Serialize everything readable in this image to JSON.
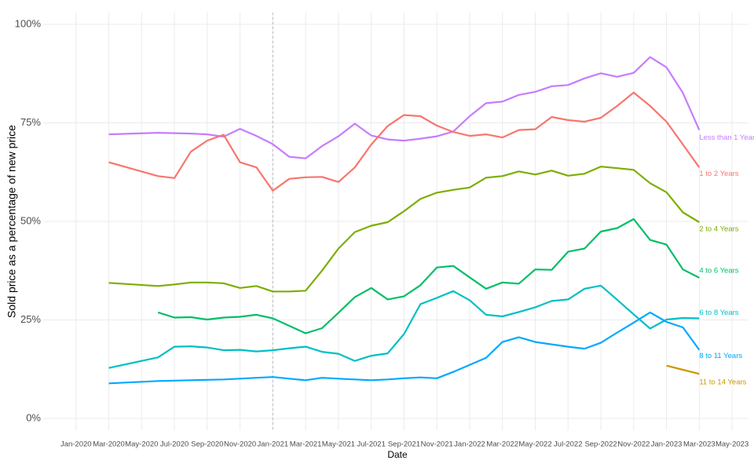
{
  "chart_data": {
    "type": "line",
    "y_label": "Sold price as a percentage of new price",
    "x_label": "Date",
    "x": [
      "2020-03",
      "2020-06",
      "2020-07",
      "2020-08",
      "2020-09",
      "2020-10",
      "2020-11",
      "2020-12",
      "2021-01",
      "2021-02",
      "2021-03",
      "2021-04",
      "2021-05",
      "2021-06",
      "2021-07",
      "2021-08",
      "2021-09",
      "2021-10",
      "2021-11",
      "2021-12",
      "2022-01",
      "2022-02",
      "2022-03",
      "2022-04",
      "2022-05",
      "2022-06",
      "2022-07",
      "2022-08",
      "2022-09",
      "2022-10",
      "2022-11",
      "2022-12",
      "2023-01",
      "2023-02",
      "2023-03"
    ],
    "series": [
      {
        "name": "Less than 1 Year",
        "color": "#c77cff",
        "values": [
          72.1,
          72.5,
          72.4,
          72.3,
          72.1,
          71.5,
          73.5,
          71.7,
          69.6,
          66.4,
          66,
          69.1,
          71.6,
          74.8,
          71.8,
          70.8,
          70.5,
          71,
          71.6,
          72.8,
          76.7,
          80,
          80.4,
          82.1,
          82.9,
          84.3,
          84.6,
          86.3,
          87.6,
          86.7,
          87.7,
          91.7,
          89.1,
          82.6,
          73.2
        ]
      },
      {
        "name": "1 to 2 Years",
        "color": "#f8766d",
        "values": [
          65,
          61.5,
          61,
          67.7,
          70.5,
          72,
          65,
          63.7,
          57.8,
          60.8,
          61.2,
          61.3,
          60,
          63.7,
          69.5,
          74.2,
          77,
          76.7,
          74.3,
          72.7,
          71.7,
          72.1,
          71.3,
          73.2,
          73.4,
          76.5,
          75.7,
          75.3,
          76.3,
          79.3,
          82.7,
          79.3,
          75.3,
          69.5,
          63.7
        ]
      },
      {
        "name": "2 to 4 Years",
        "color": "#7cae00",
        "values": [
          34.4,
          33.6,
          34,
          34.5,
          34.5,
          34.3,
          33.1,
          33.6,
          32.2,
          32.2,
          32.4,
          37.5,
          43.1,
          47.3,
          48.9,
          49.8,
          52.6,
          55.7,
          57.3,
          58,
          58.6,
          61.1,
          61.5,
          62.7,
          61.9,
          62.9,
          61.6,
          62.1,
          63.9,
          63.5,
          63.1,
          59.7,
          57.4,
          52.3,
          49.8
        ]
      },
      {
        "name": "4 to 6 Years",
        "color": "#00be67",
        "values": [
          null,
          26.9,
          25.6,
          25.7,
          25.1,
          25.6,
          25.8,
          26.3,
          25.4,
          23.5,
          21.6,
          22.9,
          26.8,
          30.8,
          33.1,
          30.2,
          31,
          33.8,
          38.3,
          38.7,
          35.8,
          32.9,
          34.5,
          34.2,
          37.8,
          37.7,
          42.3,
          43.1,
          47.4,
          48.3,
          50.6,
          45.3,
          44.1,
          37.8,
          35.7
        ]
      },
      {
        "name": "6 to 8 Years",
        "color": "#00bfc4",
        "values": [
          12.8,
          15.5,
          18.2,
          18.3,
          18,
          17.3,
          17.4,
          17,
          17.3,
          17.8,
          18.2,
          16.9,
          16.4,
          14.6,
          15.9,
          16.5,
          21.4,
          29,
          30.6,
          32.3,
          30,
          26.3,
          25.9,
          27,
          28.2,
          29.8,
          30.2,
          32.9,
          33.7,
          30.1,
          26.4,
          22.8,
          25.1,
          25.5,
          25.4
        ]
      },
      {
        "name": "8 to 11 Years",
        "color": "#00a9ff",
        "values": [
          8.9,
          9.5,
          9.6,
          9.7,
          9.8,
          9.9,
          10.1,
          10.3,
          10.5,
          10.1,
          9.7,
          10.3,
          10.1,
          9.9,
          9.7,
          9.9,
          10.2,
          10.4,
          10.2,
          11.8,
          13.6,
          15.4,
          19.4,
          20.6,
          19.4,
          18.8,
          18.2,
          17.7,
          19.2,
          21.8,
          24.3,
          26.9,
          24.5,
          23.1,
          17.4
        ]
      },
      {
        "name": "11 to 14 Years",
        "color": "#cd9600",
        "values": [
          null,
          null,
          null,
          null,
          null,
          null,
          null,
          null,
          null,
          null,
          null,
          null,
          null,
          null,
          null,
          null,
          null,
          null,
          null,
          null,
          null,
          null,
          null,
          null,
          null,
          null,
          null,
          null,
          null,
          null,
          null,
          null,
          13.4,
          12.35,
          11.3
        ]
      }
    ],
    "xlim": [
      "2019-11",
      "2023-06"
    ],
    "xticks": [
      {
        "value": "2020-01",
        "label": "Jan-2020"
      },
      {
        "value": "2020-03",
        "label": "Mar-2020"
      },
      {
        "value": "2020-05",
        "label": "May-2020"
      },
      {
        "value": "2020-07",
        "label": "Jul-2020"
      },
      {
        "value": "2020-09",
        "label": "Sep-2020"
      },
      {
        "value": "2020-11",
        "label": "Nov-2020"
      },
      {
        "value": "2021-01",
        "label": "Jan-2021"
      },
      {
        "value": "2021-03",
        "label": "Mar-2021"
      },
      {
        "value": "2021-05",
        "label": "May-2021"
      },
      {
        "value": "2021-07",
        "label": "Jul-2021"
      },
      {
        "value": "2021-09",
        "label": "Sep-2021"
      },
      {
        "value": "2021-11",
        "label": "Nov-2021"
      },
      {
        "value": "2022-01",
        "label": "Jan-2022"
      },
      {
        "value": "2022-03",
        "label": "Mar-2022"
      },
      {
        "value": "2022-05",
        "label": "May-2022"
      },
      {
        "value": "2022-07",
        "label": "Jul-2022"
      },
      {
        "value": "2022-09",
        "label": "Sep-2022"
      },
      {
        "value": "2022-11",
        "label": "Nov-2022"
      },
      {
        "value": "2023-01",
        "label": "Jan-2023"
      },
      {
        "value": "2023-03",
        "label": "Mar-2023"
      },
      {
        "value": "2023-05",
        "label": "May-2023"
      }
    ],
    "ylim": [
      -3,
      103
    ],
    "yticks": [
      {
        "value": 0,
        "label": "0%"
      },
      {
        "value": 25,
        "label": "25%"
      },
      {
        "value": 50,
        "label": "50%"
      },
      {
        "value": 75,
        "label": "75%"
      },
      {
        "value": 100,
        "label": "100%"
      }
    ],
    "grid": true,
    "vline_x": "2021-01"
  }
}
